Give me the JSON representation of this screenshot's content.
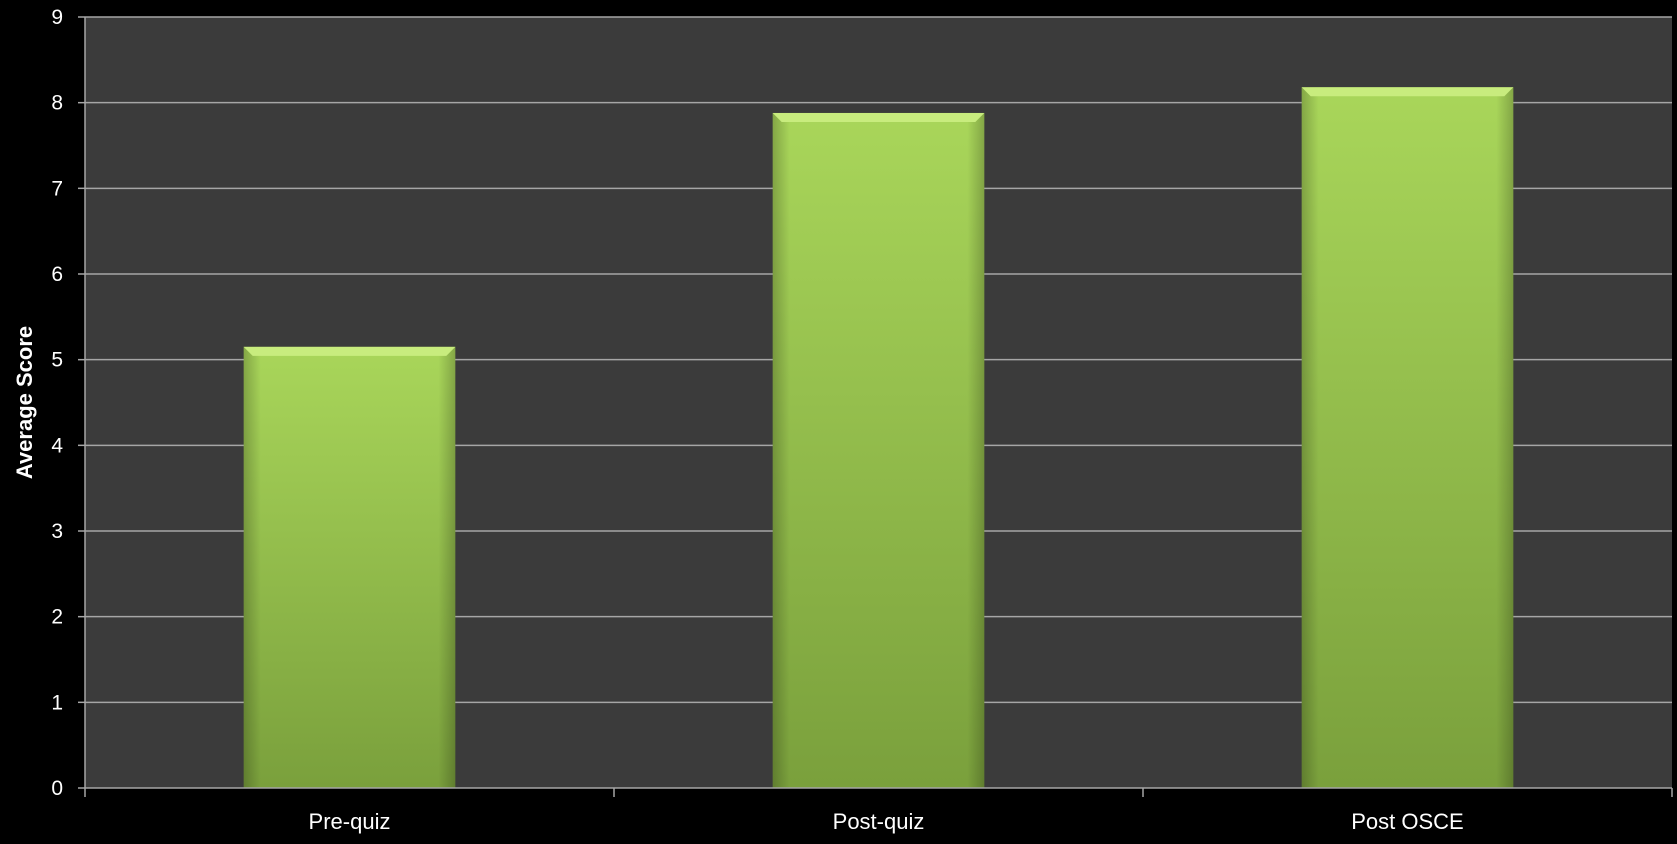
{
  "chart_data": {
    "type": "bar",
    "categories": [
      "Pre-quiz",
      "Post-quiz",
      "Post OSCE"
    ],
    "values": [
      5.15,
      7.88,
      8.18
    ],
    "title": "",
    "xlabel": "",
    "ylabel": "Average Score",
    "ylim": [
      0,
      9
    ],
    "yticks": [
      "0",
      "1",
      "2",
      "3",
      "4",
      "5",
      "6",
      "7",
      "8",
      "9"
    ],
    "grid": true,
    "legend": "none"
  },
  "colors": {
    "background": "#000000",
    "plot_area": "#3b3b3b",
    "gridline": "#a6a6a6",
    "bar_top": "#a9d65a",
    "bar_bottom": "#7aa03c",
    "bar_cap": "#c8ec7e",
    "text": "#ffffff"
  }
}
